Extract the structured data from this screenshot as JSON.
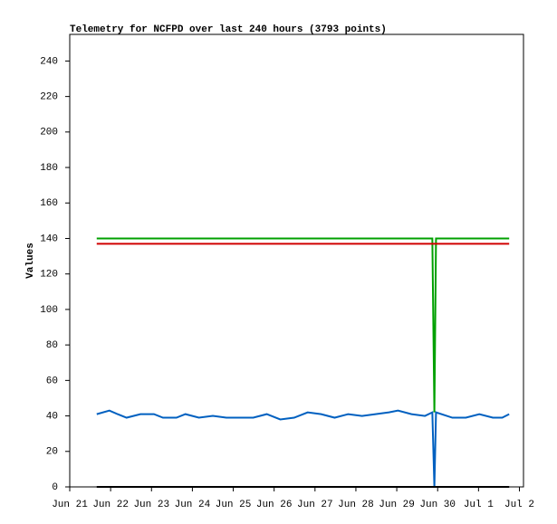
{
  "chart_data": {
    "type": "line",
    "title": "Telemetry for NCFPD over last 240 hours (3793 points)",
    "y_label": "Values",
    "x": [
      0.66,
      0.97,
      1.17,
      1.39,
      1.73,
      2.06,
      2.28,
      2.61,
      2.83,
      3.16,
      3.5,
      3.83,
      4.16,
      4.49,
      4.82,
      5.15,
      5.49,
      5.82,
      6.15,
      6.48,
      6.81,
      7.15,
      7.48,
      7.81,
      8.03,
      8.36,
      8.69,
      8.87,
      8.92,
      8.96,
      9.36,
      9.69,
      10.02,
      10.35,
      10.58,
      10.75
    ],
    "series": [
      {
        "color": "#00a000",
        "values": [
          140,
          140,
          140,
          140,
          140,
          140,
          140,
          140,
          140,
          140,
          140,
          140,
          140,
          140,
          140,
          140,
          140,
          140,
          140,
          140,
          140,
          140,
          140,
          140,
          140,
          140,
          140,
          140,
          42,
          140,
          140,
          140,
          140,
          140,
          140,
          140
        ]
      },
      {
        "color": "#d00000",
        "values": [
          137,
          137,
          137,
          137,
          137,
          137,
          137,
          137,
          137,
          137,
          137,
          137,
          137,
          137,
          137,
          137,
          137,
          137,
          137,
          137,
          137,
          137,
          137,
          137,
          137,
          137,
          137,
          137,
          137,
          137,
          137,
          137,
          137,
          137,
          137,
          137
        ]
      },
      {
        "color": "#0060c0",
        "values": [
          41,
          43,
          41,
          39,
          41,
          41,
          39,
          39,
          41,
          39,
          40,
          39,
          39,
          39,
          41,
          38,
          39,
          42,
          41,
          39,
          41,
          40,
          41,
          42,
          43,
          41,
          40,
          42,
          0,
          42,
          39,
          39,
          41,
          39,
          39,
          41
        ]
      },
      {
        "color": "#000000",
        "values": [
          0,
          0,
          0,
          0,
          0,
          0,
          0,
          0,
          0,
          0,
          0,
          0,
          0,
          0,
          0,
          0,
          0,
          0,
          0,
          0,
          0,
          0,
          0,
          0,
          0,
          0,
          0,
          0,
          0,
          0,
          0,
          0,
          0,
          0,
          0,
          0
        ]
      }
    ],
    "xlim": [
      0,
      11.1
    ],
    "xticks": [
      {
        "value": 0,
        "label": "Jun 21"
      },
      {
        "value": 1,
        "label": "Jun 22"
      },
      {
        "value": 2,
        "label": "Jun 23"
      },
      {
        "value": 3,
        "label": "Jun 24"
      },
      {
        "value": 4,
        "label": "Jun 25"
      },
      {
        "value": 5,
        "label": "Jun 26"
      },
      {
        "value": 6,
        "label": "Jun 27"
      },
      {
        "value": 7,
        "label": "Jun 28"
      },
      {
        "value": 8,
        "label": "Jun 29"
      },
      {
        "value": 9,
        "label": "Jun 30"
      },
      {
        "value": 10,
        "label": "Jul 1"
      },
      {
        "value": 11,
        "label": "Jul 2"
      }
    ],
    "ylim": [
      0,
      255
    ],
    "yticks": [
      0,
      20,
      40,
      60,
      80,
      100,
      120,
      140,
      160,
      180,
      200,
      220,
      240
    ],
    "grid": false
  }
}
